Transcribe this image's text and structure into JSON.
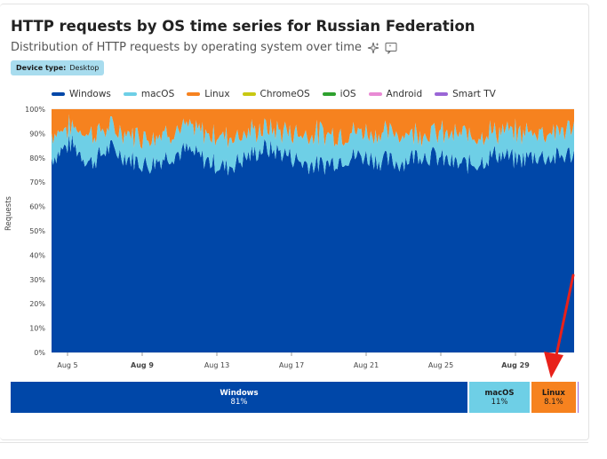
{
  "header": {
    "title": "HTTP requests by OS time series for Russian Federation",
    "subtitle": "Distribution of HTTP requests by operating system over time",
    "badge_key": "Device type:",
    "badge_value": "Desktop"
  },
  "colors": {
    "windows": "#0047a8",
    "macos": "#6ecfe6",
    "linux": "#f6821f",
    "chromeos": "#c8c812",
    "ios": "#2ea12e",
    "android": "#e88ad4",
    "smarttv": "#9a66d6"
  },
  "legend": [
    {
      "label": "Windows",
      "color": "#0047a8"
    },
    {
      "label": "macOS",
      "color": "#6ecfe6"
    },
    {
      "label": "Linux",
      "color": "#f6821f"
    },
    {
      "label": "ChromeOS",
      "color": "#c8c812"
    },
    {
      "label": "iOS",
      "color": "#2ea12e"
    },
    {
      "label": "Android",
      "color": "#e88ad4"
    },
    {
      "label": "Smart TV",
      "color": "#9a66d6"
    }
  ],
  "chart_data": {
    "type": "area",
    "stacked": true,
    "ylabel": "Requests",
    "ylim": [
      0,
      100
    ],
    "yticks": [
      "0%",
      "10%",
      "20%",
      "30%",
      "40%",
      "50%",
      "60%",
      "70%",
      "80%",
      "90%",
      "100%"
    ],
    "xticks": [
      {
        "label": "Aug 5",
        "bold": false
      },
      {
        "label": "Aug 9",
        "bold": true
      },
      {
        "label": "Aug 13",
        "bold": false
      },
      {
        "label": "Aug 17",
        "bold": false
      },
      {
        "label": "Aug 21",
        "bold": false
      },
      {
        "label": "Aug 25",
        "bold": false
      },
      {
        "label": "Aug 29",
        "bold": true
      }
    ],
    "x_start": "Aug 4",
    "x_end": "Aug 31",
    "series": [
      {
        "name": "Windows",
        "values": [
          80,
          86,
          78,
          84,
          80,
          77,
          81,
          83,
          79,
          76,
          80,
          84,
          82,
          78,
          77,
          80,
          81,
          79,
          78,
          82,
          80,
          77,
          78,
          82,
          79,
          81,
          80,
          82
        ]
      },
      {
        "name": "macOS",
        "values": [
          10,
          7,
          12,
          8,
          10,
          12,
          10,
          9,
          11,
          13,
          10,
          8,
          9,
          12,
          13,
          10,
          10,
          11,
          12,
          9,
          10,
          12,
          12,
          9,
          11,
          10,
          11,
          10
        ]
      },
      {
        "name": "Linux",
        "values": [
          10,
          7,
          10,
          8,
          10,
          11,
          9,
          8,
          10,
          11,
          10,
          8,
          9,
          10,
          10,
          10,
          9,
          10,
          10,
          9,
          10,
          11,
          10,
          9,
          10,
          9,
          9,
          8
        ]
      }
    ]
  },
  "share_bar": [
    {
      "name": "Windows",
      "value": "81%",
      "share": 81,
      "color": "#0047a8",
      "text": "#ffffff"
    },
    {
      "name": "macOS",
      "value": "11%",
      "share": 11,
      "color": "#6ecfe6",
      "text": "#1a1a1a"
    },
    {
      "name": "Linux",
      "value": "8.1%",
      "share": 8.1,
      "color": "#f6821f",
      "text": "#1a1a1a"
    }
  ]
}
